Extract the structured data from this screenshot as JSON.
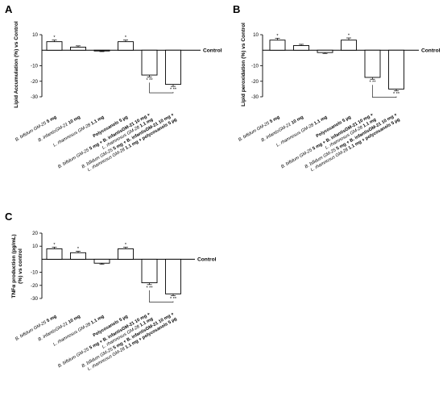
{
  "figure": {
    "background": "#ffffff",
    "bar_fill": "#ffffff",
    "stroke": "#000000"
  },
  "chart_data": [
    {
      "type": "bar",
      "panel": "A",
      "ylabel": "Lipid Accumulation (%) vs Control",
      "baseline_label": "Control",
      "ylim": [
        -30,
        10
      ],
      "yticks": [
        10,
        -10,
        -20,
        -30
      ],
      "categories": [
        "B. bifidum GM-25 5 mg",
        "B. infantisGM-21 10 mg",
        "L. rhamnosus GM-28 1.1 mg",
        "Polycosanols 5 µg",
        "B. bifidum GM-25 5 mg + B. infantisGM-21 10 mg + L. rhamnosus GM-28 1.1 mg",
        "B. bifidum GM-25 5 mg + B. infantisGM-21 10 mg + L. rhamnosus GM-28 1.1 mg + polycosanols 5 µg"
      ],
      "values": [
        5.5,
        2,
        -0.5,
        5.5,
        -16,
        -22
      ],
      "errors": [
        1,
        0.8,
        0.4,
        1,
        1.2,
        1.3
      ],
      "significance": [
        "*",
        "",
        "",
        "*",
        "* **",
        "* **"
      ],
      "comparison_bracket": [
        4,
        5
      ]
    },
    {
      "type": "bar",
      "panel": "B",
      "ylabel": "Lipid peroxidation (%) vs Control",
      "baseline_label": "Control",
      "ylim": [
        -30,
        10
      ],
      "yticks": [
        10,
        -10,
        -20,
        -30
      ],
      "categories": [
        "B. bifidum GM-25 5 mg",
        "B. infantisGM-21 10 mg",
        "L. rhamnosus GM-28 1.1 mg",
        "Polycosanols 5 µg",
        "B. bifidum GM-25 5 mg + B. infantisGM-21 10 mg + L. rhamnosus GM-28 1.1 mg",
        "B. bifidum GM-25 5 mg + B. infantisGM-21 10 mg + L. rhamnosus GM-28 1.1 mg + polycosanols 5 µg"
      ],
      "values": [
        6.5,
        3,
        -1.5,
        6.5,
        -17.5,
        -25
      ],
      "errors": [
        1.2,
        0.8,
        0.6,
        1.4,
        1.2,
        1.2
      ],
      "significance": [
        "*",
        "",
        "",
        "*",
        "* **",
        "* **"
      ],
      "comparison_bracket": [
        4,
        5
      ]
    },
    {
      "type": "bar",
      "panel": "C",
      "ylabel": "TNFα production (pg/mL) (%) vs control",
      "baseline_label": "Control",
      "ylim": [
        -30,
        20
      ],
      "yticks": [
        20,
        10,
        -10,
        -20,
        -30
      ],
      "categories": [
        "B. bifidum GM-25 5 mg",
        "B. infantisGM-21 10 mg",
        "L. rhamnosus GM-28 1.1 mg",
        "Polycosanols 5 µg",
        "B. bifidum GM-25 5 mg + B. infantisGM-21 10 mg + L. rhamnosus GM-28 1.1 mg",
        "B. bifidum GM-25 5 mg + B. infantisGM-21 10 mg + L. rhamnosus GM-28 1.1 mg + polycosanols 5 µg"
      ],
      "values": [
        8,
        5,
        -3,
        8,
        -18,
        -26.5
      ],
      "errors": [
        1.3,
        1.2,
        0.8,
        1.3,
        1.4,
        1.4
      ],
      "significance": [
        "*",
        "*",
        "",
        "*",
        "* **",
        "* **"
      ],
      "comparison_bracket": [
        4,
        5
      ]
    }
  ]
}
